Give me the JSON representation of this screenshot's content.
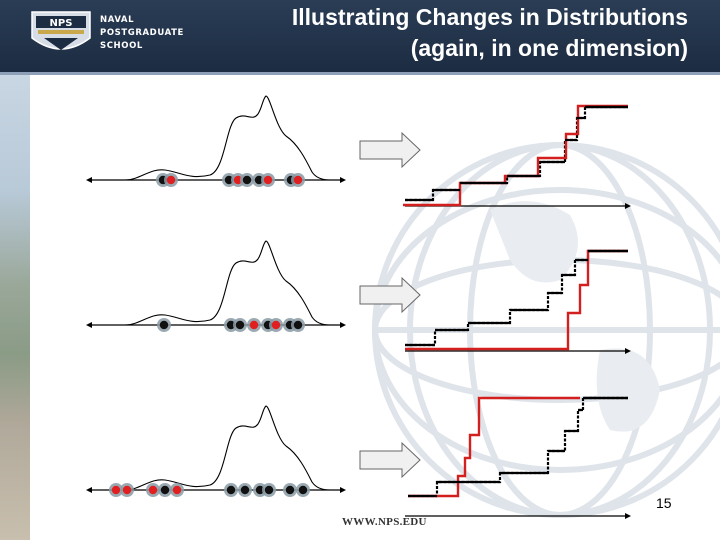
{
  "header": {
    "logo_text_lines": [
      "NAVAL",
      "POSTGRADUATE",
      "SCHOOL"
    ],
    "logo_badge": "NPS",
    "title_line1": "Illustrating Changes in Distributions",
    "title_line2": "(again, in one dimension)"
  },
  "footer": {
    "url": "WWW.NPS.EDU",
    "page_number": "15"
  },
  "colors": {
    "header_bg": "#1f3048",
    "sample_red": "#e02020",
    "sample_black": "#111111",
    "dot_halo": "#8a9ba5",
    "cdf_red": "#d41f1f",
    "cdf_black": "#000000",
    "arrow_fill": "#f0f0f0"
  },
  "panels": [
    {
      "name": "panel-1",
      "dots_note": "red and black samples mixed in both clusters",
      "cdf_note": "red and black step functions interleaved"
    },
    {
      "name": "panel-2",
      "dots_note": "red samples only in right cluster",
      "cdf_note": "red CDF jumps late"
    },
    {
      "name": "panel-3",
      "dots_note": "red samples in left cluster",
      "cdf_note": "red CDF jumps early"
    }
  ]
}
